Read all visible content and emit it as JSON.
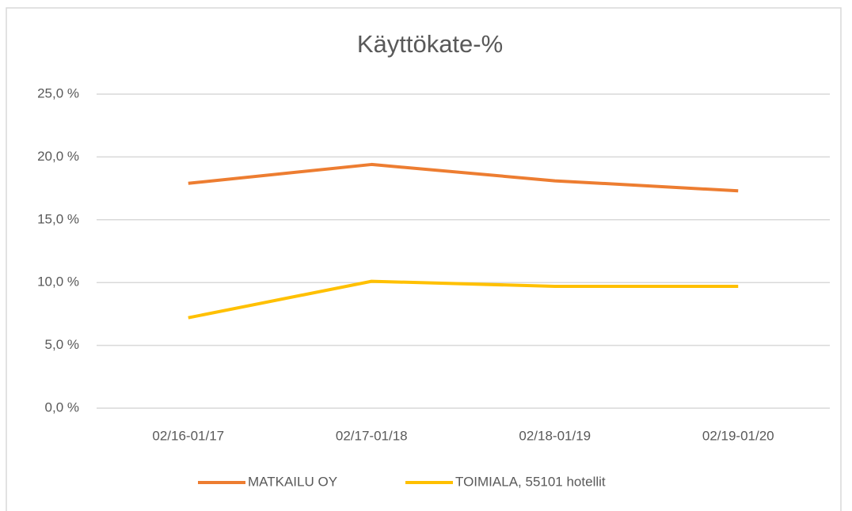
{
  "chart_data": {
    "type": "line",
    "title": "Käyttökate-%",
    "categories": [
      "02/16-01/17",
      "02/17-01/18",
      "02/18-01/19",
      "02/19-01/20"
    ],
    "series": [
      {
        "name": "MATKAILU OY",
        "color": "#ed7d31",
        "values": [
          17.9,
          19.4,
          18.1,
          17.3
        ]
      },
      {
        "name": "TOIMIALA, 55101 hotellit",
        "color": "#ffc000",
        "values": [
          7.2,
          10.1,
          9.7,
          9.7
        ]
      }
    ],
    "ylim": [
      0,
      25
    ],
    "yticks": [
      {
        "value": 0,
        "label": "0,0 %"
      },
      {
        "value": 5,
        "label": "5,0 %"
      },
      {
        "value": 10,
        "label": "10,0 %"
      },
      {
        "value": 15,
        "label": "15,0 %"
      },
      {
        "value": 20,
        "label": "20,0 %"
      },
      {
        "value": 25,
        "label": "25,0 %"
      }
    ],
    "grid": true,
    "legend": "bottom"
  }
}
